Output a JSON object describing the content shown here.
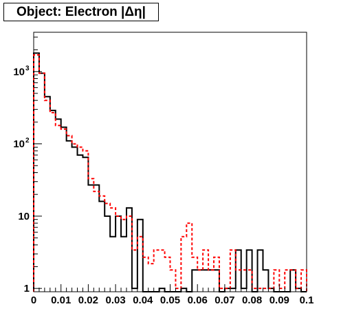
{
  "chart_data": {
    "type": "histogram",
    "title": "Object: Electron |Δη|",
    "xlabel": "",
    "ylabel": "",
    "xlim": [
      0,
      0.1
    ],
    "ylim": [
      0.9,
      3500
    ],
    "yscale": "log",
    "grid": false,
    "legend": "none",
    "bin_width": 0.002,
    "x_ticks": [
      "0",
      "0.01",
      "0.02",
      "0.03",
      "0.04",
      "0.05",
      "0.06",
      "0.07",
      "0.08",
      "0.09",
      "0.1"
    ],
    "y_ticks": [
      {
        "value": 1,
        "label": "1"
      },
      {
        "value": 10,
        "label": "10"
      },
      {
        "value": 100,
        "label": "10",
        "exp": "2"
      },
      {
        "value": 1000,
        "label": "10",
        "exp": "3"
      }
    ],
    "series": [
      {
        "color": "#000000",
        "style": "solid",
        "values": [
          1800,
          950,
          450,
          290,
          220,
          170,
          110,
          90,
          70,
          65,
          27,
          27,
          16,
          10,
          5.2,
          10,
          5.2,
          13,
          1,
          9,
          0,
          0,
          0,
          1,
          0,
          0,
          0,
          1,
          0,
          1.8,
          1.8,
          1.8,
          1.8,
          1.8,
          0,
          1,
          1,
          3.4,
          1,
          3.4,
          0,
          3.4,
          1.8,
          1,
          0,
          0,
          0,
          1.8,
          1,
          0
        ]
      },
      {
        "color": "#ff0000",
        "style": "dashed",
        "values": [
          1700,
          950,
          400,
          270,
          180,
          160,
          130,
          100,
          90,
          80,
          33,
          22,
          19,
          15,
          13,
          10,
          9,
          10,
          3.4,
          5.2,
          2.7,
          2.2,
          3.4,
          3.4,
          2.7,
          1.8,
          1,
          5.2,
          8,
          2.7,
          1.8,
          3.4,
          1.8,
          2.7,
          1,
          1,
          3.4,
          1.8,
          1.8,
          1.8,
          1,
          1,
          1,
          1,
          1.8,
          1,
          1.8,
          1.8,
          1,
          1.8
        ]
      }
    ]
  }
}
